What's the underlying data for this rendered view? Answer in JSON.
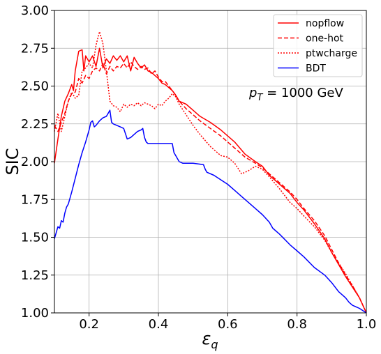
{
  "chart_data": {
    "type": "line",
    "xlabel": "ε",
    "xlabel_sub": "q",
    "ylabel": "SIC",
    "xlim": [
      0.1,
      1.0
    ],
    "ylim": [
      1.0,
      3.0
    ],
    "xticks": [
      "0.2",
      "0.4",
      "0.6",
      "0.8",
      "1.0"
    ],
    "yticks": [
      "1.00",
      "1.25",
      "1.50",
      "1.75",
      "2.00",
      "2.25",
      "2.50",
      "2.75",
      "3.00"
    ],
    "grid": true,
    "legend_position": "top-right",
    "annotation": {
      "p": "p",
      "sub": "T",
      "value": " = 1000 GeV"
    },
    "series": [
      {
        "name": "nopflow",
        "color": "#ff0000",
        "dash": "solid",
        "points": [
          [
            0.1,
            1.99
          ],
          [
            0.11,
            2.15
          ],
          [
            0.12,
            2.3
          ],
          [
            0.13,
            2.4
          ],
          [
            0.14,
            2.45
          ],
          [
            0.15,
            2.51
          ],
          [
            0.155,
            2.47
          ],
          [
            0.16,
            2.6
          ],
          [
            0.17,
            2.73
          ],
          [
            0.18,
            2.74
          ],
          [
            0.185,
            2.6
          ],
          [
            0.19,
            2.7
          ],
          [
            0.2,
            2.66
          ],
          [
            0.21,
            2.7
          ],
          [
            0.22,
            2.63
          ],
          [
            0.23,
            2.75
          ],
          [
            0.24,
            2.62
          ],
          [
            0.25,
            2.68
          ],
          [
            0.26,
            2.65
          ],
          [
            0.27,
            2.7
          ],
          [
            0.28,
            2.67
          ],
          [
            0.29,
            2.7
          ],
          [
            0.3,
            2.66
          ],
          [
            0.31,
            2.7
          ],
          [
            0.32,
            2.6
          ],
          [
            0.33,
            2.69
          ],
          [
            0.34,
            2.65
          ],
          [
            0.35,
            2.62
          ],
          [
            0.36,
            2.64
          ],
          [
            0.37,
            2.6
          ],
          [
            0.38,
            2.59
          ],
          [
            0.39,
            2.57
          ],
          [
            0.4,
            2.55
          ],
          [
            0.41,
            2.52
          ],
          [
            0.42,
            2.51
          ],
          [
            0.43,
            2.49
          ],
          [
            0.44,
            2.47
          ],
          [
            0.45,
            2.44
          ],
          [
            0.46,
            2.4
          ],
          [
            0.48,
            2.38
          ],
          [
            0.5,
            2.34
          ],
          [
            0.52,
            2.3
          ],
          [
            0.55,
            2.26
          ],
          [
            0.58,
            2.21
          ],
          [
            0.6,
            2.17
          ],
          [
            0.62,
            2.13
          ],
          [
            0.65,
            2.05
          ],
          [
            0.68,
            2.0
          ],
          [
            0.7,
            1.97
          ],
          [
            0.72,
            1.91
          ],
          [
            0.75,
            1.85
          ],
          [
            0.78,
            1.79
          ],
          [
            0.8,
            1.73
          ],
          [
            0.82,
            1.68
          ],
          [
            0.85,
            1.59
          ],
          [
            0.88,
            1.49
          ],
          [
            0.9,
            1.4
          ],
          [
            0.92,
            1.32
          ],
          [
            0.94,
            1.24
          ],
          [
            0.96,
            1.17
          ],
          [
            0.98,
            1.1
          ],
          [
            1.0,
            1.0
          ]
        ]
      },
      {
        "name": "one-hot",
        "color": "#ff0000",
        "dash": "6,3",
        "points": [
          [
            0.1,
            2.24
          ],
          [
            0.11,
            2.2
          ],
          [
            0.12,
            2.26
          ],
          [
            0.13,
            2.32
          ],
          [
            0.14,
            2.4
          ],
          [
            0.15,
            2.45
          ],
          [
            0.16,
            2.46
          ],
          [
            0.17,
            2.55
          ],
          [
            0.18,
            2.52
          ],
          [
            0.19,
            2.57
          ],
          [
            0.2,
            2.55
          ],
          [
            0.21,
            2.6
          ],
          [
            0.22,
            2.62
          ],
          [
            0.23,
            2.6
          ],
          [
            0.24,
            2.65
          ],
          [
            0.25,
            2.58
          ],
          [
            0.26,
            2.63
          ],
          [
            0.27,
            2.6
          ],
          [
            0.28,
            2.63
          ],
          [
            0.29,
            2.62
          ],
          [
            0.3,
            2.65
          ],
          [
            0.31,
            2.62
          ],
          [
            0.32,
            2.66
          ],
          [
            0.33,
            2.63
          ],
          [
            0.34,
            2.61
          ],
          [
            0.35,
            2.63
          ],
          [
            0.36,
            2.61
          ],
          [
            0.37,
            2.62
          ],
          [
            0.38,
            2.58
          ],
          [
            0.39,
            2.6
          ],
          [
            0.4,
            2.56
          ],
          [
            0.41,
            2.53
          ],
          [
            0.42,
            2.53
          ],
          [
            0.43,
            2.5
          ],
          [
            0.44,
            2.47
          ],
          [
            0.45,
            2.44
          ],
          [
            0.46,
            2.4
          ],
          [
            0.48,
            2.35
          ],
          [
            0.5,
            2.31
          ],
          [
            0.52,
            2.27
          ],
          [
            0.55,
            2.22
          ],
          [
            0.58,
            2.17
          ],
          [
            0.6,
            2.13
          ],
          [
            0.62,
            2.09
          ],
          [
            0.65,
            2.03
          ],
          [
            0.68,
            1.99
          ],
          [
            0.7,
            1.96
          ],
          [
            0.72,
            1.92
          ],
          [
            0.75,
            1.86
          ],
          [
            0.78,
            1.8
          ],
          [
            0.8,
            1.75
          ],
          [
            0.82,
            1.69
          ],
          [
            0.85,
            1.61
          ],
          [
            0.88,
            1.51
          ],
          [
            0.9,
            1.42
          ],
          [
            0.92,
            1.33
          ],
          [
            0.94,
            1.25
          ],
          [
            0.96,
            1.18
          ],
          [
            0.98,
            1.1
          ],
          [
            1.0,
            1.0
          ]
        ]
      },
      {
        "name": "ptwcharge",
        "color": "#ff0000",
        "dash": "2,2",
        "points": [
          [
            0.1,
            2.2
          ],
          [
            0.11,
            2.32
          ],
          [
            0.12,
            2.2
          ],
          [
            0.13,
            2.3
          ],
          [
            0.14,
            2.4
          ],
          [
            0.15,
            2.46
          ],
          [
            0.16,
            2.42
          ],
          [
            0.17,
            2.44
          ],
          [
            0.18,
            2.6
          ],
          [
            0.19,
            2.62
          ],
          [
            0.2,
            2.65
          ],
          [
            0.21,
            2.62
          ],
          [
            0.22,
            2.77
          ],
          [
            0.23,
            2.86
          ],
          [
            0.24,
            2.78
          ],
          [
            0.25,
            2.6
          ],
          [
            0.26,
            2.4
          ],
          [
            0.27,
            2.37
          ],
          [
            0.28,
            2.36
          ],
          [
            0.29,
            2.33
          ],
          [
            0.3,
            2.38
          ],
          [
            0.31,
            2.36
          ],
          [
            0.32,
            2.38
          ],
          [
            0.33,
            2.37
          ],
          [
            0.34,
            2.39
          ],
          [
            0.35,
            2.37
          ],
          [
            0.36,
            2.39
          ],
          [
            0.37,
            2.38
          ],
          [
            0.38,
            2.37
          ],
          [
            0.39,
            2.35
          ],
          [
            0.4,
            2.38
          ],
          [
            0.41,
            2.37
          ],
          [
            0.42,
            2.4
          ],
          [
            0.43,
            2.42
          ],
          [
            0.44,
            2.45
          ],
          [
            0.45,
            2.43
          ],
          [
            0.46,
            2.38
          ],
          [
            0.48,
            2.31
          ],
          [
            0.5,
            2.24
          ],
          [
            0.52,
            2.18
          ],
          [
            0.55,
            2.1
          ],
          [
            0.58,
            2.04
          ],
          [
            0.6,
            2.03
          ],
          [
            0.62,
            1.99
          ],
          [
            0.64,
            1.92
          ],
          [
            0.66,
            1.94
          ],
          [
            0.68,
            1.97
          ],
          [
            0.7,
            1.95
          ],
          [
            0.72,
            1.9
          ],
          [
            0.75,
            1.82
          ],
          [
            0.78,
            1.73
          ],
          [
            0.8,
            1.69
          ],
          [
            0.82,
            1.64
          ],
          [
            0.85,
            1.57
          ],
          [
            0.88,
            1.48
          ],
          [
            0.9,
            1.4
          ],
          [
            0.92,
            1.33
          ],
          [
            0.94,
            1.26
          ],
          [
            0.96,
            1.18
          ],
          [
            0.98,
            1.1
          ],
          [
            1.0,
            1.0
          ]
        ]
      },
      {
        "name": "BDT",
        "color": "#0000ff",
        "dash": "solid",
        "points": [
          [
            0.1,
            1.49
          ],
          [
            0.105,
            1.53
          ],
          [
            0.11,
            1.57
          ],
          [
            0.115,
            1.56
          ],
          [
            0.12,
            1.61
          ],
          [
            0.125,
            1.6
          ],
          [
            0.13,
            1.66
          ],
          [
            0.135,
            1.7
          ],
          [
            0.14,
            1.72
          ],
          [
            0.15,
            1.8
          ],
          [
            0.16,
            1.89
          ],
          [
            0.17,
            1.98
          ],
          [
            0.18,
            2.06
          ],
          [
            0.19,
            2.13
          ],
          [
            0.2,
            2.21
          ],
          [
            0.205,
            2.26
          ],
          [
            0.21,
            2.27
          ],
          [
            0.215,
            2.23
          ],
          [
            0.22,
            2.24
          ],
          [
            0.23,
            2.27
          ],
          [
            0.24,
            2.29
          ],
          [
            0.25,
            2.3
          ],
          [
            0.26,
            2.34
          ],
          [
            0.265,
            2.26
          ],
          [
            0.27,
            2.25
          ],
          [
            0.28,
            2.24
          ],
          [
            0.29,
            2.23
          ],
          [
            0.3,
            2.22
          ],
          [
            0.31,
            2.15
          ],
          [
            0.32,
            2.16
          ],
          [
            0.33,
            2.18
          ],
          [
            0.34,
            2.2
          ],
          [
            0.35,
            2.21
          ],
          [
            0.355,
            2.22
          ],
          [
            0.36,
            2.16
          ],
          [
            0.365,
            2.13
          ],
          [
            0.37,
            2.12
          ],
          [
            0.39,
            2.12
          ],
          [
            0.42,
            2.12
          ],
          [
            0.44,
            2.12
          ],
          [
            0.445,
            2.06
          ],
          [
            0.45,
            2.04
          ],
          [
            0.46,
            2.0
          ],
          [
            0.47,
            1.99
          ],
          [
            0.5,
            1.99
          ],
          [
            0.53,
            1.98
          ],
          [
            0.535,
            1.95
          ],
          [
            0.54,
            1.93
          ],
          [
            0.56,
            1.91
          ],
          [
            0.58,
            1.88
          ],
          [
            0.6,
            1.85
          ],
          [
            0.62,
            1.81
          ],
          [
            0.64,
            1.77
          ],
          [
            0.66,
            1.73
          ],
          [
            0.68,
            1.69
          ],
          [
            0.7,
            1.65
          ],
          [
            0.72,
            1.6
          ],
          [
            0.73,
            1.56
          ],
          [
            0.75,
            1.52
          ],
          [
            0.78,
            1.45
          ],
          [
            0.8,
            1.41
          ],
          [
            0.82,
            1.37
          ],
          [
            0.85,
            1.3
          ],
          [
            0.88,
            1.25
          ],
          [
            0.9,
            1.2
          ],
          [
            0.92,
            1.14
          ],
          [
            0.94,
            1.1
          ],
          [
            0.95,
            1.07
          ],
          [
            0.96,
            1.05
          ],
          [
            0.98,
            1.03
          ],
          [
            1.0,
            1.0
          ]
        ]
      }
    ]
  }
}
